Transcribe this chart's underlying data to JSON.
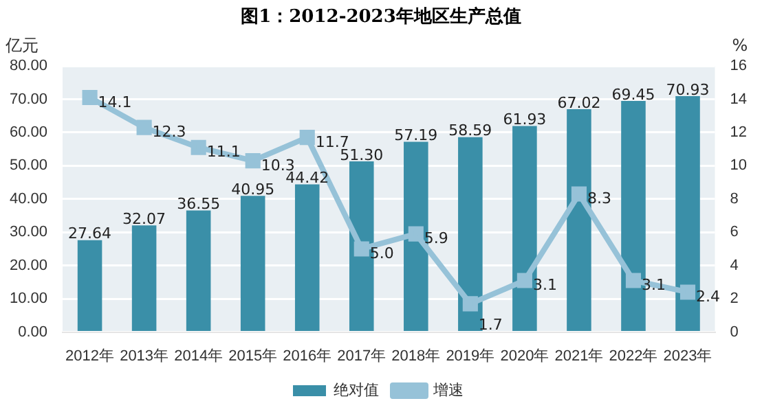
{
  "chart_data": {
    "type": "bar",
    "title": "图1：2012-2023年地区生产总值",
    "ylabel": "亿元",
    "y2label": "%",
    "categories": [
      "2012年",
      "2013年",
      "2014年",
      "2015年",
      "2016年",
      "2017年",
      "2018年",
      "2019年",
      "2020年",
      "2021年",
      "2022年",
      "2023年"
    ],
    "series": [
      {
        "name": "绝对值",
        "color": "#3a8fa8",
        "values": [
          27.64,
          32.07,
          36.55,
          40.95,
          44.42,
          51.3,
          57.19,
          58.59,
          61.93,
          67.02,
          69.45,
          70.93
        ],
        "value_labels": [
          "27.64",
          "32.07",
          "36.55",
          "40.95",
          "44.42",
          "51.30",
          "57.19",
          "58.59",
          "61.93",
          "67.02",
          "69.45",
          "70.93"
        ]
      },
      {
        "name": "增速",
        "type": "line",
        "axis": "y2",
        "color": "#96c2d8",
        "marker": "square",
        "values": [
          14.1,
          12.3,
          11.1,
          10.3,
          11.7,
          5.0,
          5.9,
          1.7,
          3.1,
          8.3,
          3.1,
          2.4
        ],
        "value_labels": [
          "14.1",
          "12.3",
          "11.1",
          "10.3",
          "11.7",
          "5.0",
          "5.9",
          "1.7",
          "3.1",
          "8.3",
          "3.1",
          "2.4"
        ]
      }
    ],
    "ylim": [
      0,
      80
    ],
    "yticks": [
      {
        "value": 0,
        "label": "0.00"
      },
      {
        "value": 10,
        "label": "10.00"
      },
      {
        "value": 20,
        "label": "20.00"
      },
      {
        "value": 30,
        "label": "30.00"
      },
      {
        "value": 40,
        "label": "40.00"
      },
      {
        "value": 50,
        "label": "50.00"
      },
      {
        "value": 60,
        "label": "60.00"
      },
      {
        "value": 70,
        "label": "70.00"
      },
      {
        "value": 80,
        "label": "80.00"
      }
    ],
    "y2lim": [
      0,
      16
    ],
    "y2ticks": [
      0,
      2,
      4,
      6,
      8,
      10,
      12,
      14,
      16
    ],
    "grid": "y",
    "legend": "bottom"
  }
}
